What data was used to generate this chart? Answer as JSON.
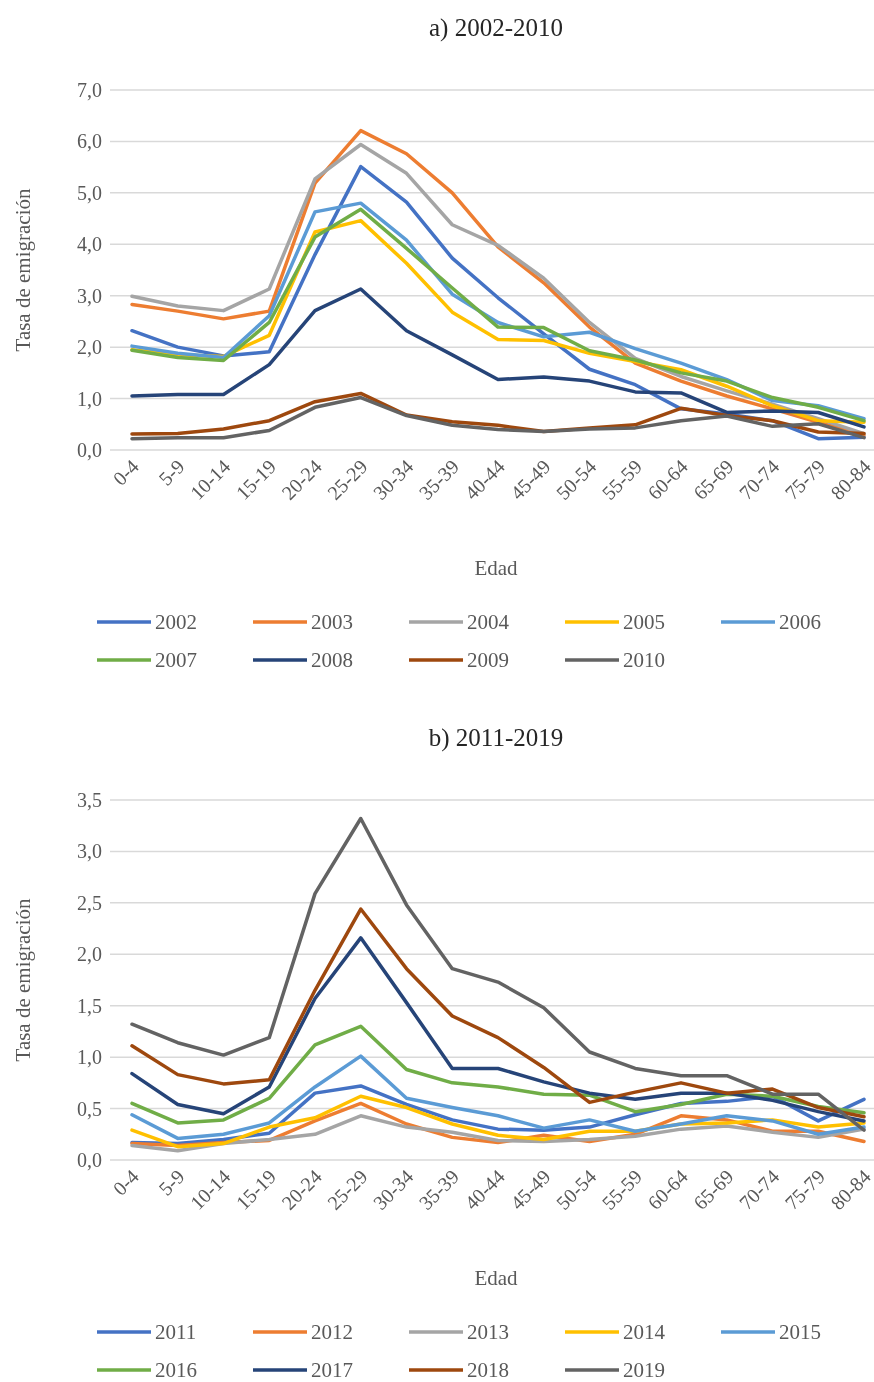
{
  "chart_data": [
    {
      "type": "line",
      "title": "a) 2002-2010",
      "xlabel": "Edad",
      "ylabel": "Tasa de emigración",
      "grid": "y",
      "legend": "bottom",
      "categories": [
        "0-4",
        "5-9",
        "10-14",
        "15-19",
        "20-24",
        "25-29",
        "30-34",
        "35-39",
        "40-44",
        "45-49",
        "50-54",
        "55-59",
        "60-64",
        "65-69",
        "70-74",
        "75-79",
        "80-84"
      ],
      "ylim": [
        0,
        7
      ],
      "yticks": [
        {
          "value": 0,
          "label": "0,0"
        },
        {
          "value": 1,
          "label": "1,0"
        },
        {
          "value": 2,
          "label": "2,0"
        },
        {
          "value": 3,
          "label": "3,0"
        },
        {
          "value": 4,
          "label": "4,0"
        },
        {
          "value": 5,
          "label": "5,0"
        },
        {
          "value": 6,
          "label": "6,0"
        },
        {
          "value": 7,
          "label": "7,0"
        }
      ],
      "series": [
        {
          "name": "2002",
          "color": "#4472c4",
          "values": [
            2.32,
            2.0,
            1.83,
            1.91,
            3.8,
            5.51,
            4.82,
            3.73,
            2.96,
            2.26,
            1.57,
            1.27,
            0.8,
            0.7,
            0.57,
            0.22,
            0.25
          ]
        },
        {
          "name": "2003",
          "color": "#ed7d31",
          "values": [
            2.83,
            2.7,
            2.55,
            2.7,
            5.19,
            6.21,
            5.76,
            5.0,
            3.95,
            3.25,
            2.39,
            1.69,
            1.34,
            1.05,
            0.8,
            0.54,
            0.29
          ]
        },
        {
          "name": "2004",
          "color": "#a5a5a5",
          "values": [
            2.99,
            2.8,
            2.71,
            3.13,
            5.27,
            5.94,
            5.38,
            4.38,
            3.98,
            3.34,
            2.48,
            1.78,
            1.43,
            1.15,
            0.89,
            0.61,
            0.32
          ]
        },
        {
          "name": "2005",
          "color": "#ffc000",
          "values": [
            1.95,
            1.85,
            1.82,
            2.23,
            4.24,
            4.46,
            3.63,
            2.68,
            2.15,
            2.13,
            1.88,
            1.72,
            1.56,
            1.24,
            0.86,
            0.57,
            0.54
          ]
        },
        {
          "name": "2006",
          "color": "#5b9bd5",
          "values": [
            2.02,
            1.88,
            1.8,
            2.61,
            4.63,
            4.8,
            4.08,
            3.03,
            2.48,
            2.2,
            2.29,
            1.97,
            1.69,
            1.37,
            0.96,
            0.86,
            0.61
          ]
        },
        {
          "name": "2007",
          "color": "#70ad47",
          "values": [
            1.94,
            1.8,
            1.74,
            2.48,
            4.14,
            4.68,
            3.92,
            3.15,
            2.39,
            2.38,
            1.93,
            1.75,
            1.5,
            1.34,
            1.02,
            0.83,
            0.57
          ]
        },
        {
          "name": "2008",
          "color": "#264478",
          "values": [
            1.05,
            1.08,
            1.08,
            1.66,
            2.71,
            3.13,
            2.32,
            1.85,
            1.37,
            1.42,
            1.34,
            1.13,
            1.11,
            0.73,
            0.76,
            0.73,
            0.45
          ]
        },
        {
          "name": "2009",
          "color": "#9e480e",
          "values": [
            0.31,
            0.32,
            0.41,
            0.57,
            0.94,
            1.1,
            0.68,
            0.55,
            0.48,
            0.36,
            0.43,
            0.49,
            0.81,
            0.67,
            0.57,
            0.35,
            0.32
          ]
        },
        {
          "name": "2010",
          "color": "#636363",
          "values": [
            0.22,
            0.24,
            0.24,
            0.38,
            0.83,
            1.02,
            0.67,
            0.48,
            0.4,
            0.36,
            0.41,
            0.43,
            0.57,
            0.66,
            0.46,
            0.51,
            0.24
          ]
        }
      ]
    },
    {
      "type": "line",
      "title": "b) 2011-2019",
      "xlabel": "Edad",
      "ylabel": "Tasa de emigración",
      "grid": "y",
      "legend": "bottom",
      "categories": [
        "0-4",
        "5-9",
        "10-14",
        "15-19",
        "20-24",
        "25-29",
        "30-34",
        "35-39",
        "40-44",
        "45-49",
        "50-54",
        "55-59",
        "60-64",
        "65-69",
        "70-74",
        "75-79",
        "80-84"
      ],
      "ylim": [
        0,
        3.5
      ],
      "yticks": [
        {
          "value": 0,
          "label": "0,0"
        },
        {
          "value": 0.5,
          "label": "0,5"
        },
        {
          "value": 1,
          "label": "1,0"
        },
        {
          "value": 1.5,
          "label": "1,5"
        },
        {
          "value": 2,
          "label": "2,0"
        },
        {
          "value": 2.5,
          "label": "2,5"
        },
        {
          "value": 3,
          "label": "3,0"
        },
        {
          "value": 3.5,
          "label": "3,5"
        }
      ],
      "series": [
        {
          "name": "2011",
          "color": "#4472c4",
          "values": [
            0.17,
            0.16,
            0.2,
            0.26,
            0.65,
            0.72,
            0.54,
            0.39,
            0.3,
            0.29,
            0.32,
            0.44,
            0.55,
            0.57,
            0.62,
            0.38,
            0.59
          ]
        },
        {
          "name": "2012",
          "color": "#ed7d31",
          "values": [
            0.16,
            0.14,
            0.17,
            0.19,
            0.38,
            0.55,
            0.35,
            0.22,
            0.17,
            0.24,
            0.18,
            0.25,
            0.43,
            0.39,
            0.28,
            0.28,
            0.18
          ]
        },
        {
          "name": "2013",
          "color": "#a5a5a5",
          "values": [
            0.14,
            0.09,
            0.16,
            0.2,
            0.25,
            0.43,
            0.32,
            0.27,
            0.19,
            0.18,
            0.2,
            0.23,
            0.3,
            0.33,
            0.27,
            0.22,
            0.3
          ]
        },
        {
          "name": "2014",
          "color": "#ffc000",
          "values": [
            0.29,
            0.13,
            0.16,
            0.32,
            0.41,
            0.62,
            0.51,
            0.35,
            0.24,
            0.2,
            0.28,
            0.28,
            0.35,
            0.36,
            0.39,
            0.32,
            0.36
          ]
        },
        {
          "name": "2015",
          "color": "#5b9bd5",
          "values": [
            0.44,
            0.21,
            0.25,
            0.36,
            0.71,
            1.01,
            0.6,
            0.51,
            0.43,
            0.31,
            0.39,
            0.28,
            0.35,
            0.43,
            0.38,
            0.25,
            0.32
          ]
        },
        {
          "name": "2016",
          "color": "#70ad47",
          "values": [
            0.55,
            0.36,
            0.39,
            0.6,
            1.12,
            1.3,
            0.88,
            0.75,
            0.71,
            0.64,
            0.63,
            0.47,
            0.54,
            0.64,
            0.62,
            0.52,
            0.46
          ]
        },
        {
          "name": "2017",
          "color": "#264478",
          "values": [
            0.84,
            0.54,
            0.45,
            0.71,
            1.57,
            2.16,
            1.53,
            0.89,
            0.89,
            0.76,
            0.65,
            0.59,
            0.65,
            0.65,
            0.58,
            0.47,
            0.38
          ]
        },
        {
          "name": "2018",
          "color": "#9e480e",
          "values": [
            1.11,
            0.83,
            0.74,
            0.78,
            1.65,
            2.44,
            1.86,
            1.4,
            1.19,
            0.9,
            0.56,
            0.66,
            0.75,
            0.65,
            0.69,
            0.51,
            0.42
          ]
        },
        {
          "name": "2019",
          "color": "#636363",
          "values": [
            1.32,
            1.14,
            1.02,
            1.19,
            2.59,
            3.32,
            2.48,
            1.86,
            1.73,
            1.48,
            1.05,
            0.89,
            0.82,
            0.82,
            0.64,
            0.64,
            0.29
          ]
        }
      ]
    }
  ]
}
